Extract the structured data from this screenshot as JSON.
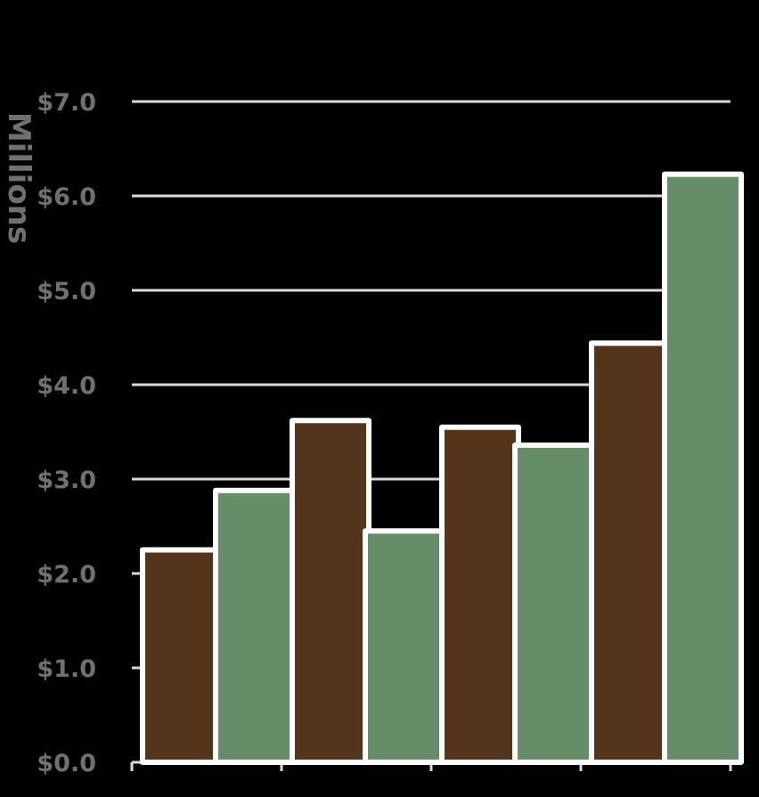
{
  "chart_data": {
    "type": "bar",
    "title": "",
    "xlabel": "",
    "ylabel": "Millions",
    "categories": [
      "",
      "",
      "",
      ""
    ],
    "series": [
      {
        "values": [
          2.25,
          3.62,
          3.55,
          4.44
        ]
      },
      {
        "values": [
          2.88,
          2.45,
          3.36,
          6.23
        ]
      }
    ],
    "ylim": [
      0,
      7
    ],
    "yticks": [
      0,
      1,
      2,
      3,
      4,
      5,
      6,
      7
    ],
    "ytick_labels": [
      "$0.0",
      "$1.0",
      "$2.0",
      "$3.0",
      "$4.0",
      "$5.0",
      "$6.0",
      "$7.0"
    ],
    "grid": true,
    "legend": "none"
  },
  "colors": {
    "background": "#000000",
    "series_1": "#55341c",
    "series_2": "#658e68",
    "bar_outline": "#ffffff",
    "gridline": "#d9d9d9",
    "tick_label": "#707070"
  }
}
